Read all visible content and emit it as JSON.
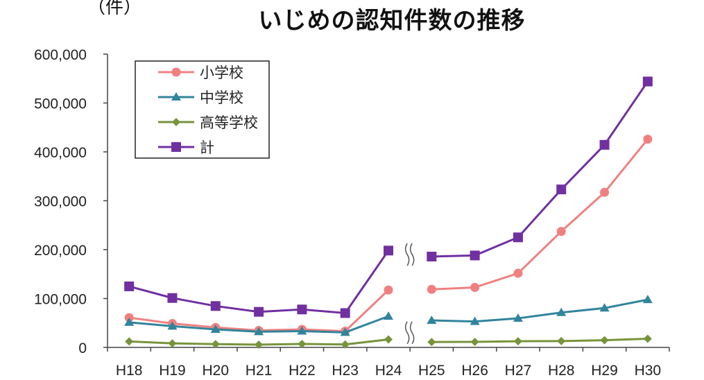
{
  "chart_data": {
    "type": "line",
    "title": "いじめの認知件数の推移",
    "unit_label": "（件）",
    "categories": [
      "H18",
      "H19",
      "H20",
      "H21",
      "H22",
      "H23",
      "H24",
      "H25",
      "H26",
      "H27",
      "H28",
      "H29",
      "H30"
    ],
    "ylim": [
      0,
      600000
    ],
    "yticks": [
      0,
      100000,
      200000,
      300000,
      400000,
      500000,
      600000
    ],
    "ytick_labels": [
      "0",
      "100,000",
      "200,000",
      "300,000",
      "400,000",
      "500,000",
      "600,000"
    ],
    "axis_break_between": [
      "H24",
      "H25"
    ],
    "legend_position": "top-left",
    "series": [
      {
        "name": "小学校",
        "color": "#f08080",
        "marker": "circle",
        "values": [
          60897,
          48896,
          40807,
          34766,
          36909,
          33124,
          117384,
          118748,
          122734,
          151692,
          237256,
          317121,
          425844
        ]
      },
      {
        "name": "中学校",
        "color": "#31849b",
        "marker": "triangle",
        "values": [
          51310,
          43505,
          36795,
          32111,
          33323,
          30749,
          63634,
          55248,
          52971,
          59502,
          71309,
          80424,
          97704
        ]
      },
      {
        "name": "高等学校",
        "color": "#77933c",
        "marker": "diamond",
        "values": [
          12307,
          8355,
          6737,
          5642,
          7018,
          6020,
          16274,
          11039,
          11404,
          12664,
          12874,
          14789,
          17709
        ]
      },
      {
        "name": "計",
        "color": "#7030a0",
        "marker": "square",
        "values": [
          124898,
          101097,
          84648,
          72778,
          77630,
          70231,
          198109,
          185803,
          188072,
          225132,
          323143,
          414378,
          543933
        ]
      }
    ]
  }
}
